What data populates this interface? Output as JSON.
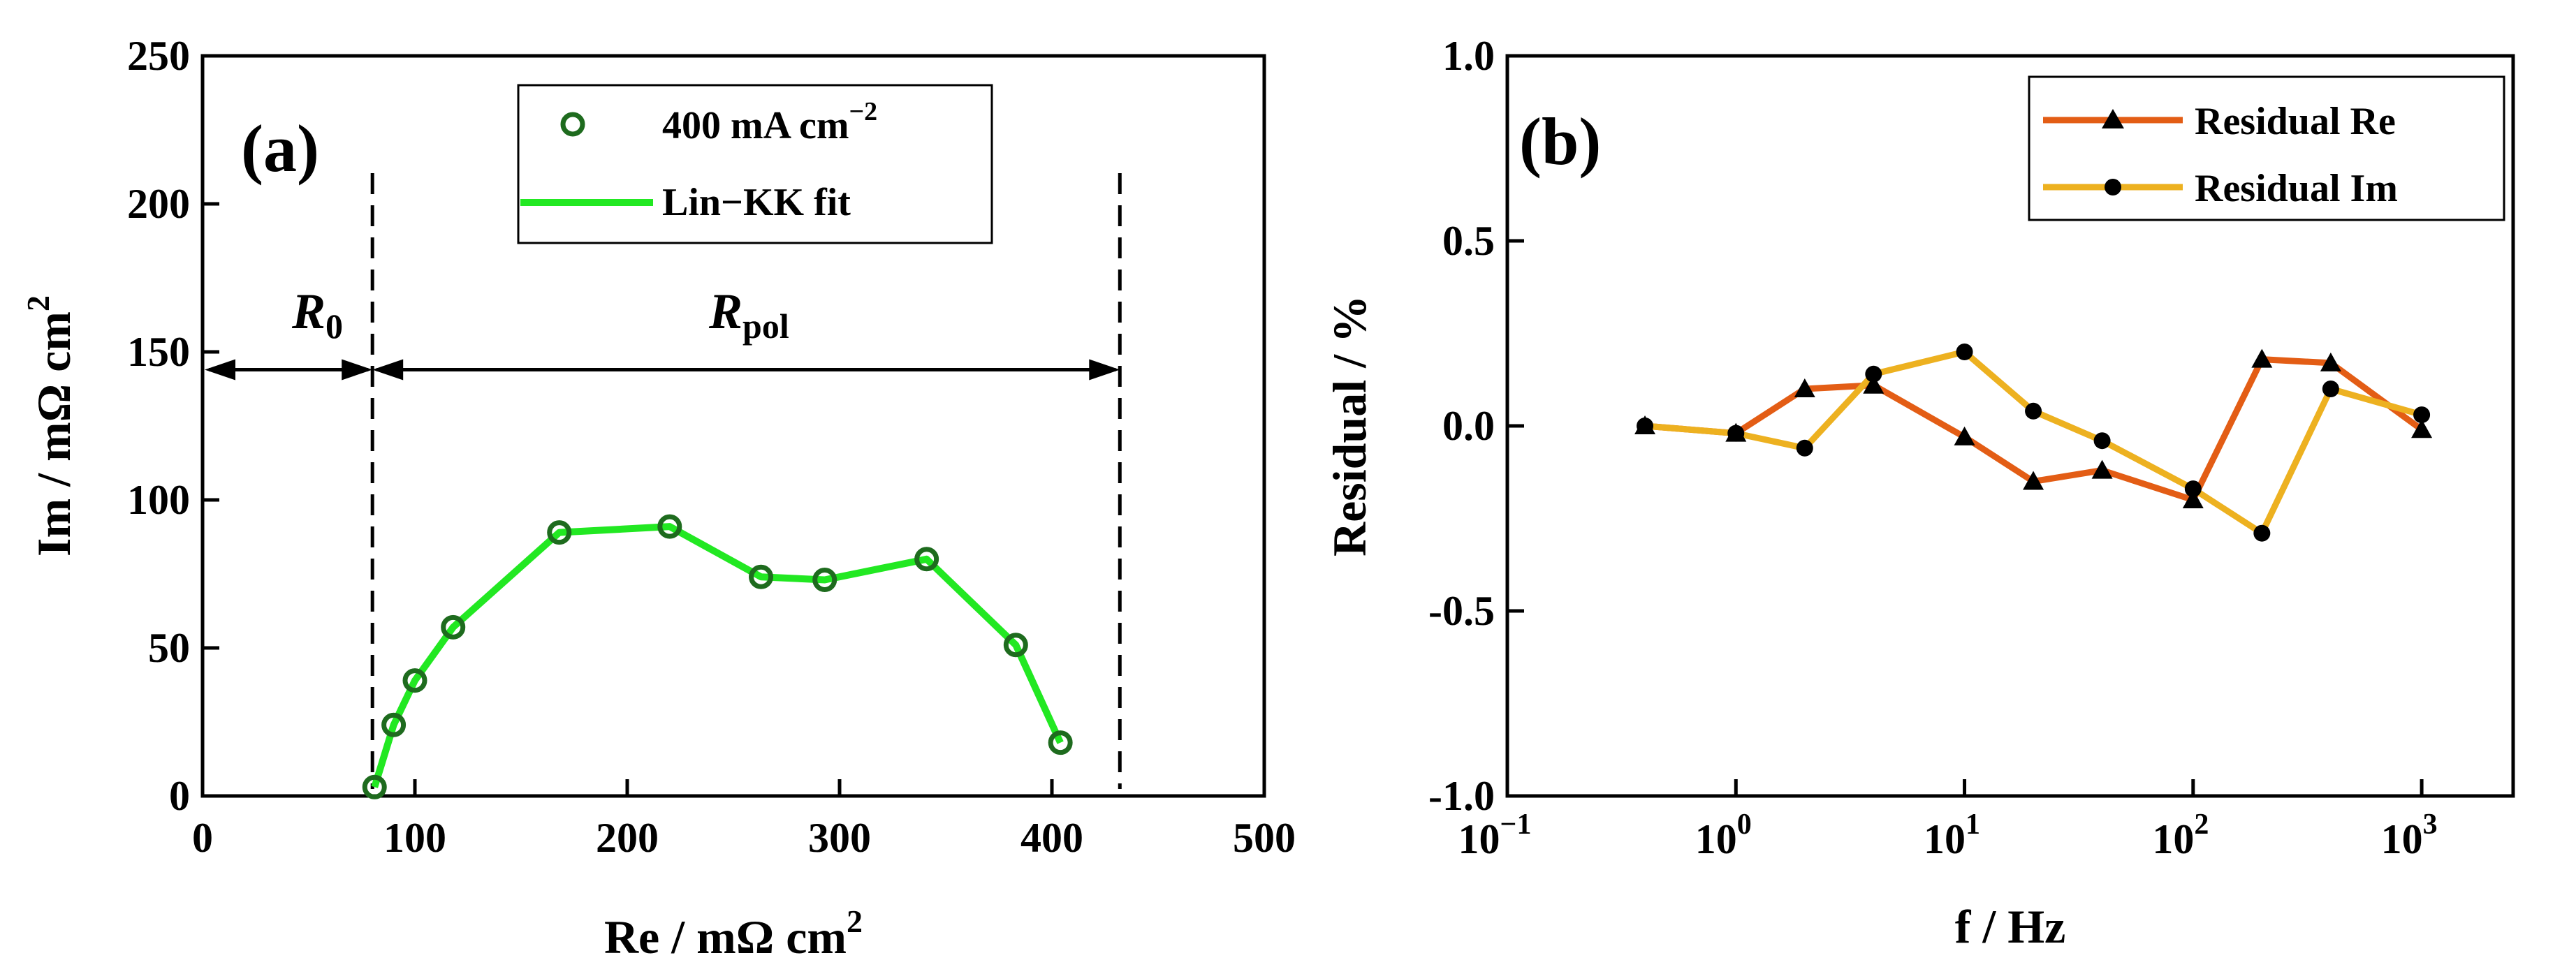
{
  "chart_data": [
    {
      "panel_label": "(a)",
      "type": "scatter",
      "xlabel": "Re / mΩ cm",
      "xlabel_sup": "2",
      "ylabel": "Im / mΩ cm",
      "ylabel_sup": "2",
      "xlim": [
        0,
        500
      ],
      "ylim": [
        0,
        250
      ],
      "xticks": [
        "0",
        "100",
        "200",
        "300",
        "400",
        "500"
      ],
      "xtick_values": [
        0,
        100,
        200,
        300,
        400,
        500
      ],
      "yticks": [
        "0",
        "50",
        "100",
        "150",
        "200",
        "250"
      ],
      "ytick_values": [
        0,
        50,
        100,
        150,
        200,
        250
      ],
      "series": [
        {
          "name": "400 mA cm",
          "name_sup": "−2",
          "kind": "markers",
          "x": [
            81,
            90,
            100,
            118,
            168,
            220,
            263,
            293,
            341,
            383,
            404
          ],
          "y": [
            3,
            24,
            39,
            57,
            89,
            91,
            74,
            73,
            80,
            51,
            18
          ]
        },
        {
          "name": "Lin−KK fit",
          "kind": "line",
          "x": [
            81,
            90,
            100,
            118,
            168,
            220,
            263,
            293,
            341,
            383,
            404
          ],
          "y": [
            3,
            24,
            39,
            57,
            89,
            91,
            74,
            73,
            80,
            51,
            18
          ]
        }
      ],
      "annotations": {
        "r0_label": "R",
        "r0_sub": "0",
        "rpol_label": "R",
        "rpol_sub": "pol",
        "vline_1_x": 80,
        "vline_2_x": 432,
        "arrow_y": 144
      },
      "colors": {
        "markers": "#1e6b1e",
        "line": "#22e822"
      },
      "legend": "top-center"
    },
    {
      "panel_label": "(b)",
      "type": "line",
      "xlabel": "f / Hz",
      "ylabel": "Residual / %",
      "xscale": "log",
      "xlim_log10": [
        -1,
        3.4
      ],
      "ylim": [
        -1.0,
        1.0
      ],
      "xticks_base": "10",
      "xticks_exp": [
        "−1",
        "0",
        "1",
        "2",
        "3"
      ],
      "xtick_log_values": [
        -1,
        0,
        1,
        2,
        3
      ],
      "yticks": [
        "-1.0",
        "-0.5",
        "0.0",
        "0.5",
        "1.0"
      ],
      "ytick_values": [
        -1.0,
        -0.5,
        0.0,
        0.5,
        1.0
      ],
      "x": [
        0.4,
        1,
        2,
        4,
        10,
        20,
        40,
        100,
        200,
        400,
        1000
      ],
      "series": [
        {
          "name": "Residual Re",
          "marker": "triangle",
          "values": [
            0.0,
            -0.02,
            0.1,
            0.11,
            -0.03,
            -0.15,
            -0.12,
            -0.2,
            0.18,
            0.17,
            -0.01
          ]
        },
        {
          "name": "Residual Im",
          "marker": "circle",
          "values": [
            0.0,
            -0.02,
            -0.06,
            0.14,
            0.2,
            0.04,
            -0.04,
            -0.17,
            -0.29,
            0.1,
            0.03
          ]
        }
      ],
      "colors": {
        "residual_re": "#e35d15",
        "residual_im": "#edb120"
      },
      "legend": "top-right"
    }
  ]
}
